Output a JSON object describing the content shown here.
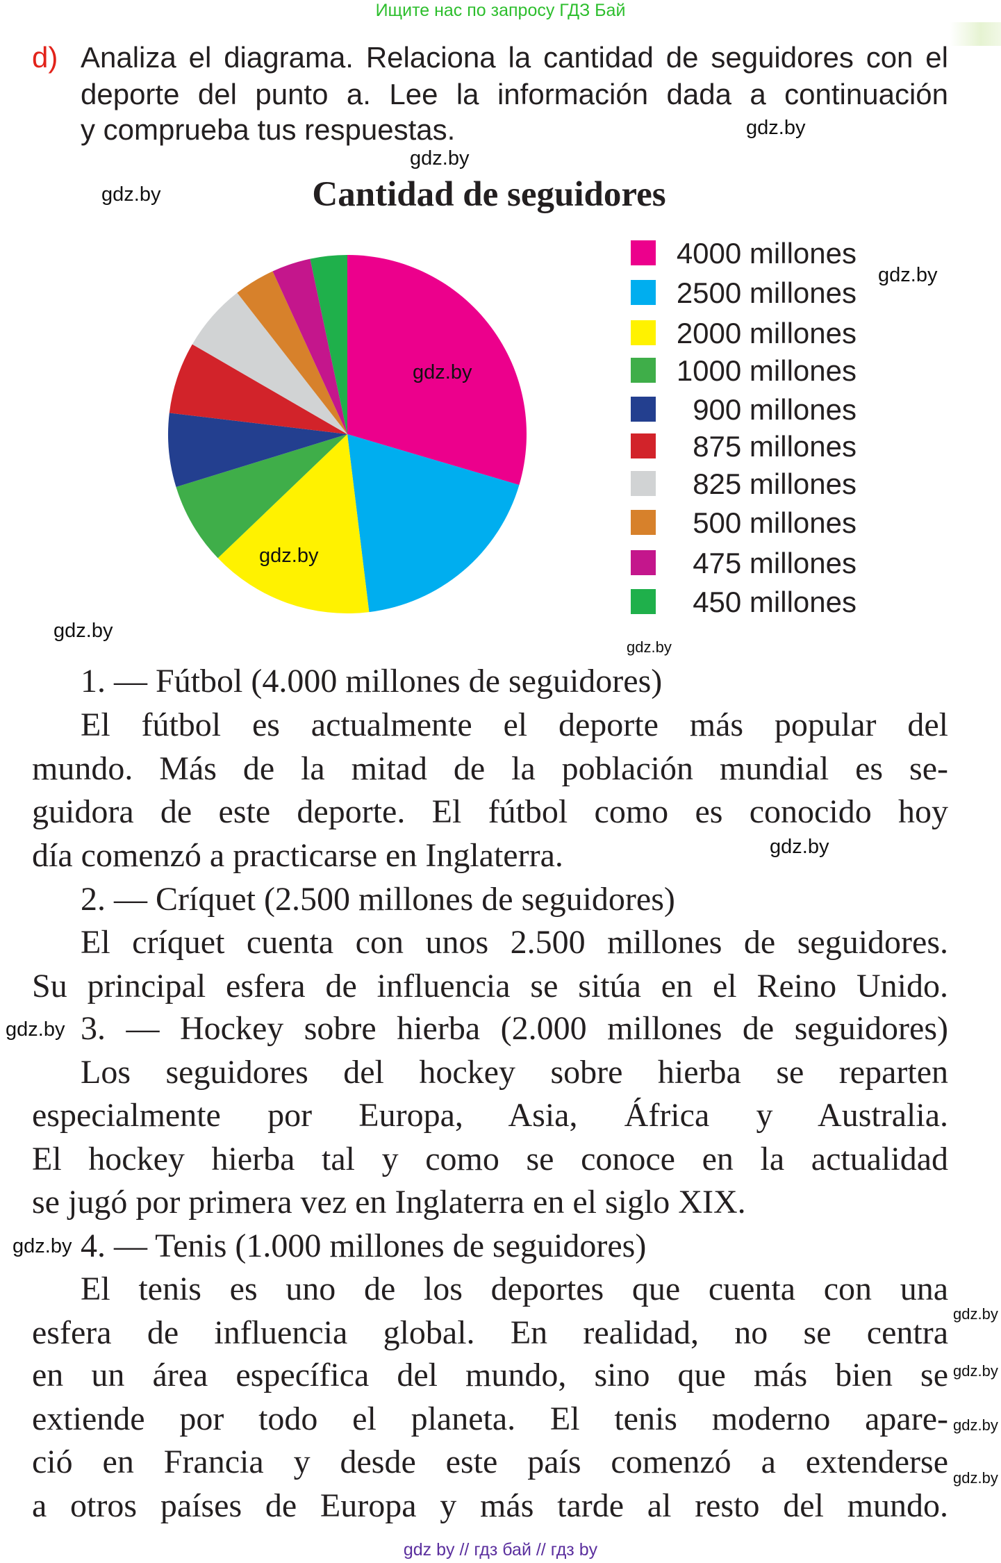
{
  "header_note": "Ищите нас по запросу ГДЗ Бай",
  "task": {
    "label": "d)",
    "lines": [
      "Analiza el diagrama. Relaciona la cantidad de seguidores con el",
      "deporte del punto a. Lee la información dada a continuación",
      "y comprueba tus respuestas."
    ]
  },
  "watermark": "gdz.by",
  "chart_data": {
    "type": "pie",
    "title": "Cantidad de seguidores",
    "unit": "millones",
    "start": "top",
    "direction": "clockwise",
    "legend_position": "right",
    "values": [
      4000,
      2500,
      2000,
      1000,
      900,
      875,
      825,
      500,
      475,
      450
    ],
    "labels": [
      "4000 millones",
      "2500 millones",
      "2000 millones",
      "1000 millones",
      "900 millones",
      "875 millones",
      "825 millones",
      "500 millones",
      "475 millones",
      "450 millones"
    ],
    "colors": [
      "#ec008c",
      "#00aeef",
      "#fff200",
      "#3fae49",
      "#233f8f",
      "#d2232a",
      "#d1d3d4",
      "#d7812b",
      "#c4168c",
      "#1fb04b"
    ]
  },
  "body": {
    "lines": [
      "1. — Fútbol (4.000 millones de seguidores)",
      "El fútbol es actualmente el deporte más popular del",
      "mundo. Más de la mitad de la población mundial es se-",
      "guidora de este deporte. El fútbol como es conocido hoy",
      "día comenzó a practicarse en Inglaterra.",
      "2. — Críquet (2.500 millones de seguidores)",
      "El críquet cuenta con unos 2.500 millones de seguidores.",
      "Su principal esfera de influencia se sitúa en el Reino Unido.",
      "3. — Hockey sobre hierba (2.000 millones de seguidores)",
      "Los seguidores del hockey sobre hierba se reparten",
      "especialmente por Europa, Asia, África y Australia.",
      "El hockey hierba tal y como se conoce en la actualidad",
      "se jugó por primera vez en Inglaterra en el siglo XIX.",
      "4. — Tenis (1.000 millones de seguidores)",
      "El tenis es uno de los deportes que cuenta con una",
      "esfera de influencia global. En realidad, no se centra",
      "en un área específica del mundo, sino que más bien se",
      "extiende por todo el planeta. El tenis moderno apare-",
      "ció en Francia y desde este país comenzó a extenderse",
      "a otros países de Europa y más tarde al resto del mundo."
    ]
  },
  "footer": "gdz by // гдз бай // гдз by"
}
